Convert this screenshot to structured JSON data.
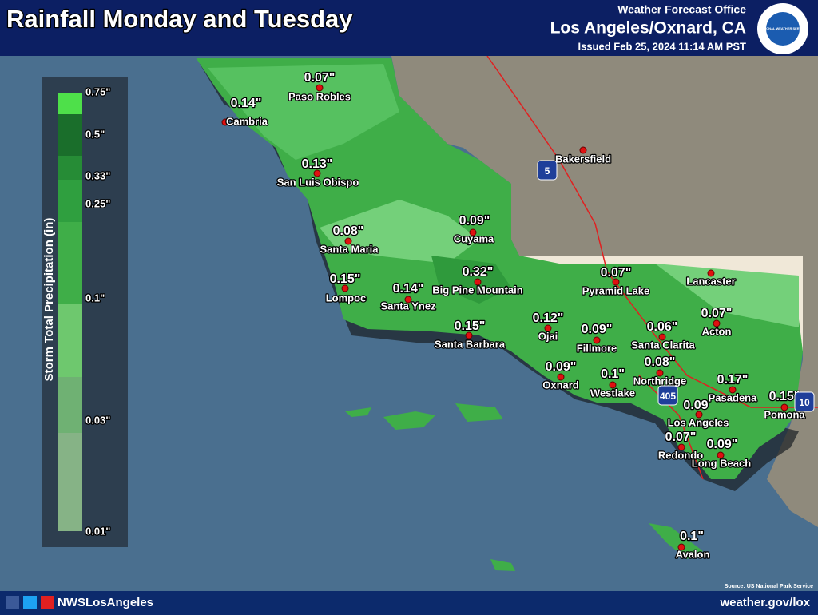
{
  "header": {
    "title": "Rainfall Monday and Tuesday",
    "office": "Weather Forecast Office",
    "location": "Los Angeles/Oxnard, CA",
    "issued": "Issued Feb 25, 2024 11:14 AM PST",
    "logo_text": "NATIONAL WEATHER SERVICE"
  },
  "legend": {
    "title": "Storm Total Precipitation (in)",
    "labels": [
      "0.75\"",
      "0.5\"",
      "0.33\"",
      "0.25\"",
      "0.1\"",
      "0.03\"",
      "0.01\""
    ]
  },
  "locations": [
    {
      "name": "Paso Robles",
      "value": "0.07\""
    },
    {
      "name": "Cambria",
      "value": "0.14\""
    },
    {
      "name": "San Luis Obispo",
      "value": "0.13\""
    },
    {
      "name": "Cuyama",
      "value": "0.09\""
    },
    {
      "name": "Santa Maria",
      "value": "0.08\""
    },
    {
      "name": "Big Pine Mountain",
      "value": "0.32\""
    },
    {
      "name": "Lompoc",
      "value": "0.15\""
    },
    {
      "name": "Santa Ynez",
      "value": "0.14\""
    },
    {
      "name": "Santa Barbara",
      "value": "0.15\""
    },
    {
      "name": "Ojai",
      "value": "0.12\""
    },
    {
      "name": "Fillmore",
      "value": "0.09\""
    },
    {
      "name": "Pyramid Lake",
      "value": "0.07\""
    },
    {
      "name": "Santa Clarita",
      "value": "0.06\""
    },
    {
      "name": "Acton",
      "value": "0.07\""
    },
    {
      "name": "Lancaster"
    },
    {
      "name": "Northridge",
      "value": "0.08\""
    },
    {
      "name": "Oxnard",
      "value": "0.09\""
    },
    {
      "name": "Westlake",
      "value": "0.1\""
    },
    {
      "name": "Pasadena",
      "value": "0.17\""
    },
    {
      "name": "Pomona",
      "value": "0.15\""
    },
    {
      "name": "Los Angeles",
      "value": "0.09"
    },
    {
      "name": "Redondo",
      "value": "0.07\""
    },
    {
      "name": "Long Beach",
      "value": "0.09\""
    },
    {
      "name": "Avalon",
      "value": "0.1\""
    },
    {
      "name": "Bakersfield"
    }
  ],
  "highways": [
    "5",
    "405",
    "10"
  ],
  "source": "Source: US National Park Service",
  "footer": {
    "handle": "NWSLosAngeles",
    "url": "weather.gov/lox"
  }
}
